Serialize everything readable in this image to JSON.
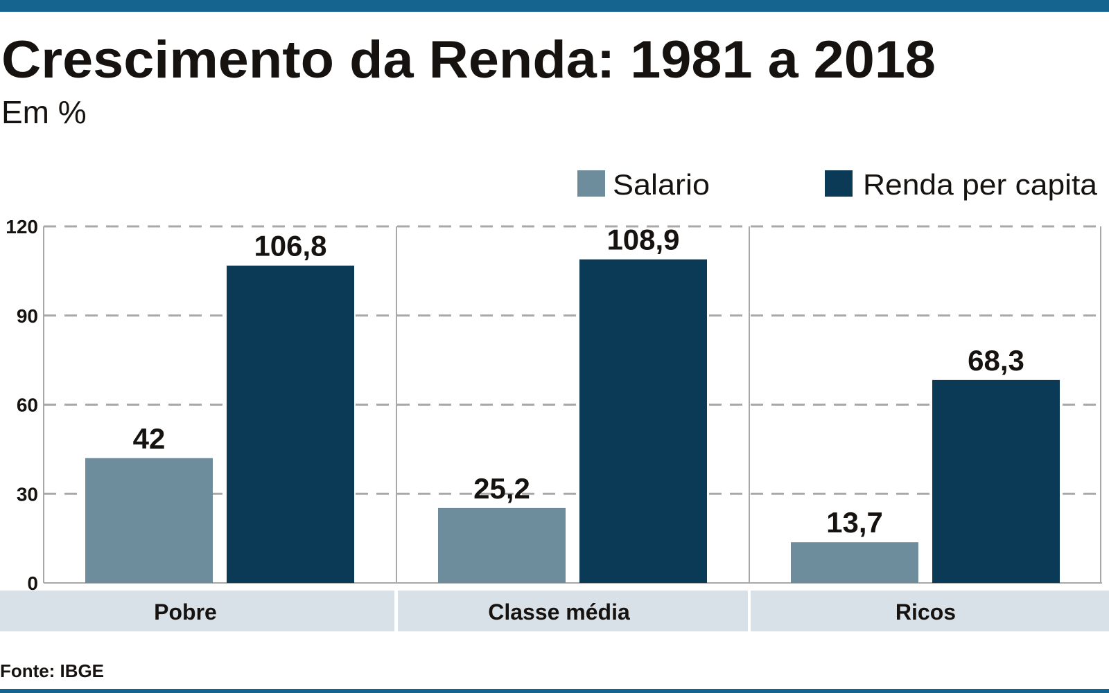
{
  "chart_data": {
    "type": "bar",
    "title": "Crescimento da Renda: 1981 a 2018",
    "subtitle": "Em %",
    "categories": [
      "Pobre",
      "Classe média",
      "Ricos"
    ],
    "series": [
      {
        "name": "Salario",
        "values": [
          42,
          25.2,
          13.7
        ],
        "labels": [
          "42",
          "25,2",
          "13,7"
        ],
        "color": "#6e8d9c"
      },
      {
        "name": "Renda per capita",
        "values": [
          106.8,
          108.9,
          68.3
        ],
        "labels": [
          "106,8",
          "108,9",
          "68,3"
        ],
        "color": "#0b3a57"
      }
    ],
    "yticks": [
      "0",
      "30",
      "60",
      "90",
      "120"
    ],
    "ylim": [
      0,
      120
    ],
    "grid": true,
    "legend": "top-right",
    "source": "Fonte: IBGE"
  },
  "colors": {
    "accent_bar": "#15648f",
    "category_band": "#d8e1e8",
    "grid": "#a8a8a8"
  }
}
